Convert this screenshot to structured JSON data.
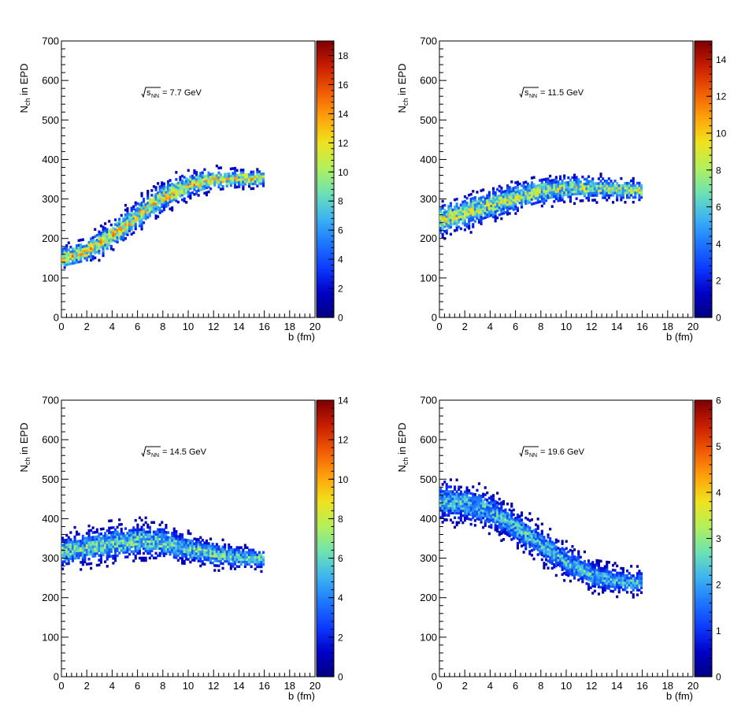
{
  "figure": {
    "colormap": [
      "#00007f",
      "#0000c8",
      "#0d3bff",
      "#1e78ff",
      "#3fb5f0",
      "#6ee3b0",
      "#b4f05a",
      "#f0e21e",
      "#ffa00a",
      "#f05a05",
      "#c81e00",
      "#7f0000"
    ]
  },
  "chart_data": [
    {
      "type": "heatmap",
      "title": "",
      "energy_label": "= 7.7 GeV",
      "xlabel": "b (fm)",
      "ylabel": "N_ch in EPD",
      "xlim": [
        0,
        20
      ],
      "ylim": [
        0,
        700
      ],
      "x_ticks": [
        0,
        2,
        4,
        6,
        8,
        10,
        12,
        14,
        16,
        18,
        20
      ],
      "y_ticks": [
        0,
        100,
        200,
        300,
        400,
        500,
        600,
        700
      ],
      "colorbar": {
        "min": 0,
        "max": 19,
        "ticks": [
          0,
          2,
          4,
          6,
          8,
          10,
          12,
          14,
          16,
          18
        ]
      },
      "band": {
        "x_range": [
          0,
          16
        ],
        "center_b": [
          0,
          2,
          4,
          6,
          8,
          10,
          12,
          14,
          16
        ],
        "center_n": [
          150,
          168,
          208,
          258,
          305,
          335,
          350,
          353,
          352
        ],
        "half_width": [
          22,
          24,
          26,
          28,
          27,
          24,
          20,
          17,
          15
        ],
        "peak_count": 13
      }
    },
    {
      "type": "heatmap",
      "title": "",
      "energy_label": "= 11.5 GeV",
      "xlabel": "b (fm)",
      "ylabel": "N_ch in EPD",
      "xlim": [
        0,
        20
      ],
      "ylim": [
        0,
        700
      ],
      "x_ticks": [
        0,
        2,
        4,
        6,
        8,
        10,
        12,
        14,
        16,
        18,
        20
      ],
      "y_ticks": [
        0,
        100,
        200,
        300,
        400,
        500,
        600,
        700
      ],
      "colorbar": {
        "min": 0,
        "max": 15,
        "ticks": [
          0,
          2,
          4,
          6,
          8,
          10,
          12,
          14
        ]
      },
      "band": {
        "x_range": [
          0,
          16
        ],
        "center_b": [
          0,
          2,
          4,
          6,
          8,
          10,
          12,
          14,
          16
        ],
        "center_n": [
          245,
          265,
          285,
          305,
          320,
          328,
          328,
          325,
          322
        ],
        "half_width": [
          32,
          32,
          30,
          28,
          26,
          24,
          22,
          20,
          18
        ],
        "peak_count": 9
      }
    },
    {
      "type": "heatmap",
      "title": "",
      "energy_label": "= 14.5 GeV",
      "xlabel": "b (fm)",
      "ylabel": "N_ch in EPD",
      "xlim": [
        0,
        20
      ],
      "ylim": [
        0,
        700
      ],
      "x_ticks": [
        0,
        2,
        4,
        6,
        8,
        10,
        12,
        14,
        16,
        18,
        20
      ],
      "y_ticks": [
        0,
        100,
        200,
        300,
        400,
        500,
        600,
        700
      ],
      "colorbar": {
        "min": 0,
        "max": 14,
        "ticks": [
          0,
          2,
          4,
          6,
          8,
          10,
          12,
          14
        ]
      },
      "band": {
        "x_range": [
          0,
          16
        ],
        "center_b": [
          0,
          2,
          4,
          6,
          8,
          10,
          12,
          14,
          16
        ],
        "center_n": [
          318,
          328,
          338,
          345,
          340,
          325,
          310,
          302,
          298
        ],
        "half_width": [
          30,
          32,
          33,
          33,
          30,
          27,
          24,
          21,
          19
        ],
        "peak_count": 7
      }
    },
    {
      "type": "heatmap",
      "title": "",
      "energy_label": "= 19.6 GeV",
      "xlabel": "b (fm)",
      "ylabel": "N_ch in EPD",
      "xlim": [
        0,
        20
      ],
      "ylim": [
        0,
        700
      ],
      "x_ticks": [
        0,
        2,
        4,
        6,
        8,
        10,
        12,
        14,
        16,
        18,
        20
      ],
      "y_ticks": [
        0,
        100,
        200,
        300,
        400,
        500,
        600,
        700
      ],
      "colorbar": {
        "min": 0,
        "max": 6,
        "ticks": [
          0,
          1,
          2,
          3,
          4,
          5,
          6
        ]
      },
      "band": {
        "x_range": [
          0,
          16
        ],
        "center_b": [
          0,
          2,
          4,
          6,
          8,
          10,
          12,
          14,
          16
        ],
        "center_n": [
          445,
          440,
          420,
          380,
          335,
          292,
          258,
          243,
          238
        ],
        "half_width": [
          38,
          36,
          34,
          33,
          32,
          30,
          27,
          24,
          22
        ],
        "peak_count": 2.6
      }
    }
  ]
}
